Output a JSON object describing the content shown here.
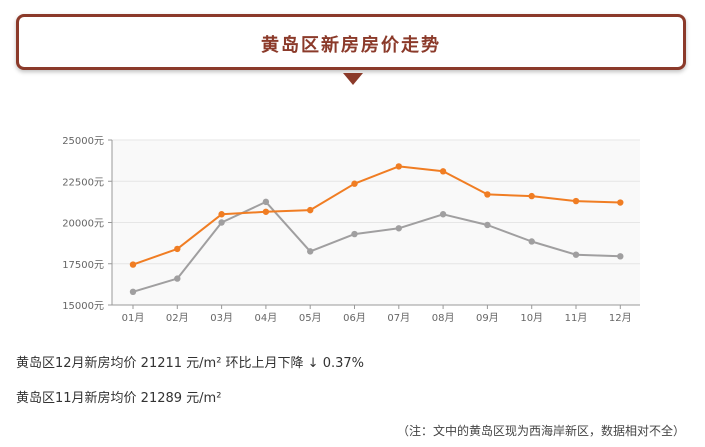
{
  "header": {
    "title": "黄岛区新房房价走势"
  },
  "chart_data": {
    "type": "line",
    "title": "",
    "xlabel": "",
    "ylabel": "",
    "categories": [
      "01月",
      "02月",
      "03月",
      "04月",
      "05月",
      "06月",
      "07月",
      "08月",
      "09月",
      "10月",
      "11月",
      "12月"
    ],
    "y_ticks": [
      "15000元",
      "17500元",
      "20000元",
      "22500元",
      "25000元"
    ],
    "ylim": [
      15000,
      25000
    ],
    "grid": "horizontal",
    "legend": "none",
    "series": [
      {
        "color": "#f07d23",
        "values": [
          17450,
          18400,
          20500,
          20650,
          20750,
          22350,
          23400,
          23100,
          21700,
          21600,
          21300,
          21211
        ]
      },
      {
        "color": "#a09fa0",
        "values": [
          15800,
          16600,
          20000,
          21250,
          18250,
          19300,
          19650,
          20500,
          19850,
          18850,
          18050,
          17950
        ]
      }
    ]
  },
  "info": {
    "line1": "黄岛区12月新房均价 21211 元/m² 环比上月下降 ↓ 0.37%",
    "line2": "黄岛区11月新房均价 21289 元/m²",
    "note": "（注：文中的黄岛区现为西海岸新区，数据相对不全）"
  },
  "colors": {
    "banner_border": "#8b3a2a",
    "banner_text": "#8b3a2a",
    "grid": "#e6e6e6",
    "axis": "#999999",
    "chart_background": "#f9f9f9"
  }
}
